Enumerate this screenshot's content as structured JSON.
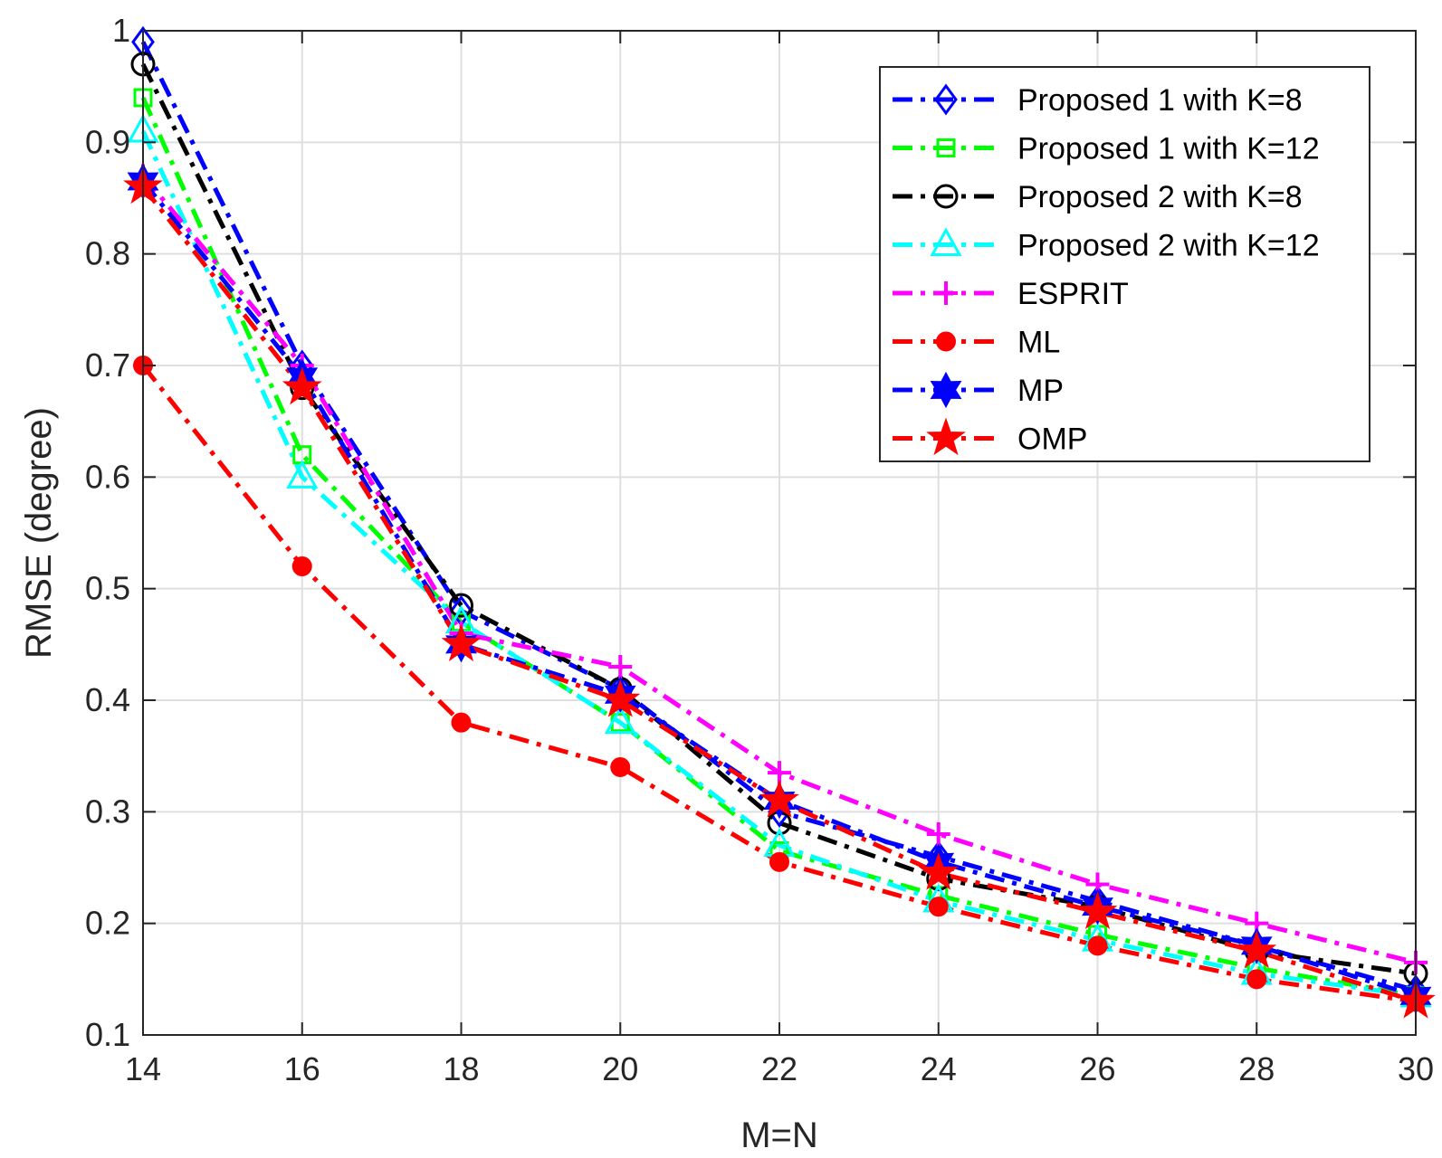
{
  "chart_data": {
    "type": "line",
    "title": "",
    "xlabel": "M=N",
    "ylabel": "RMSE (degree)",
    "x": [
      14,
      16,
      18,
      20,
      22,
      24,
      26,
      28,
      30
    ],
    "xlim": [
      14,
      30
    ],
    "ylim": [
      0.1,
      1.0
    ],
    "xticks": [
      14,
      16,
      18,
      20,
      22,
      24,
      26,
      28,
      30
    ],
    "xtick_labels": [
      "14",
      "16",
      "18",
      "20",
      "22",
      "24",
      "26",
      "28",
      "30"
    ],
    "yticks": [
      0.1,
      0.2,
      0.3,
      0.4,
      0.5,
      0.6,
      0.7,
      0.8,
      0.9,
      1.0
    ],
    "ytick_labels": [
      "0.1",
      "0.2",
      "0.3",
      "0.4",
      "0.5",
      "0.6",
      "0.7",
      "0.8",
      "0.9",
      "1"
    ],
    "grid": true,
    "legend_position": "top-right",
    "series": [
      {
        "name": "Proposed 1 with K=8",
        "color": "#0000ff",
        "dash": "dashdot",
        "marker": "diamond",
        "values": [
          0.99,
          0.7,
          0.48,
          0.41,
          0.3,
          0.26,
          0.22,
          0.18,
          0.14
        ]
      },
      {
        "name": "Proposed 1 with K=12",
        "color": "#00ff00",
        "dash": "dashdot",
        "marker": "square",
        "values": [
          0.94,
          0.62,
          0.47,
          0.38,
          0.265,
          0.225,
          0.19,
          0.16,
          0.135
        ]
      },
      {
        "name": "Proposed 2 with K=8",
        "color": "#000000",
        "dash": "dashdot",
        "marker": "circle",
        "values": [
          0.97,
          0.68,
          0.485,
          0.41,
          0.29,
          0.24,
          0.215,
          0.175,
          0.155
        ]
      },
      {
        "name": "Proposed 2 with K=12",
        "color": "#00ffff",
        "dash": "dashdot",
        "marker": "triangle",
        "values": [
          0.91,
          0.6,
          0.47,
          0.38,
          0.27,
          0.22,
          0.185,
          0.155,
          0.135
        ]
      },
      {
        "name": "ESPRIT",
        "color": "#ff00ff",
        "dash": "dashdot",
        "marker": "plus",
        "values": [
          0.87,
          0.7,
          0.46,
          0.43,
          0.335,
          0.28,
          0.235,
          0.2,
          0.165
        ]
      },
      {
        "name": "ML",
        "color": "#ff0000",
        "dash": "dashdot",
        "marker": "dot",
        "values": [
          0.7,
          0.52,
          0.38,
          0.34,
          0.255,
          0.215,
          0.18,
          0.15,
          0.13
        ]
      },
      {
        "name": "MP",
        "color": "#0000ff",
        "dash": "dashdot",
        "marker": "hexagram",
        "values": [
          0.865,
          0.69,
          0.45,
          0.405,
          0.31,
          0.255,
          0.215,
          0.18,
          0.135
        ]
      },
      {
        "name": "OMP",
        "color": "#ff0000",
        "dash": "dashdot",
        "marker": "star",
        "values": [
          0.86,
          0.68,
          0.45,
          0.4,
          0.31,
          0.245,
          0.21,
          0.175,
          0.13
        ]
      }
    ]
  }
}
